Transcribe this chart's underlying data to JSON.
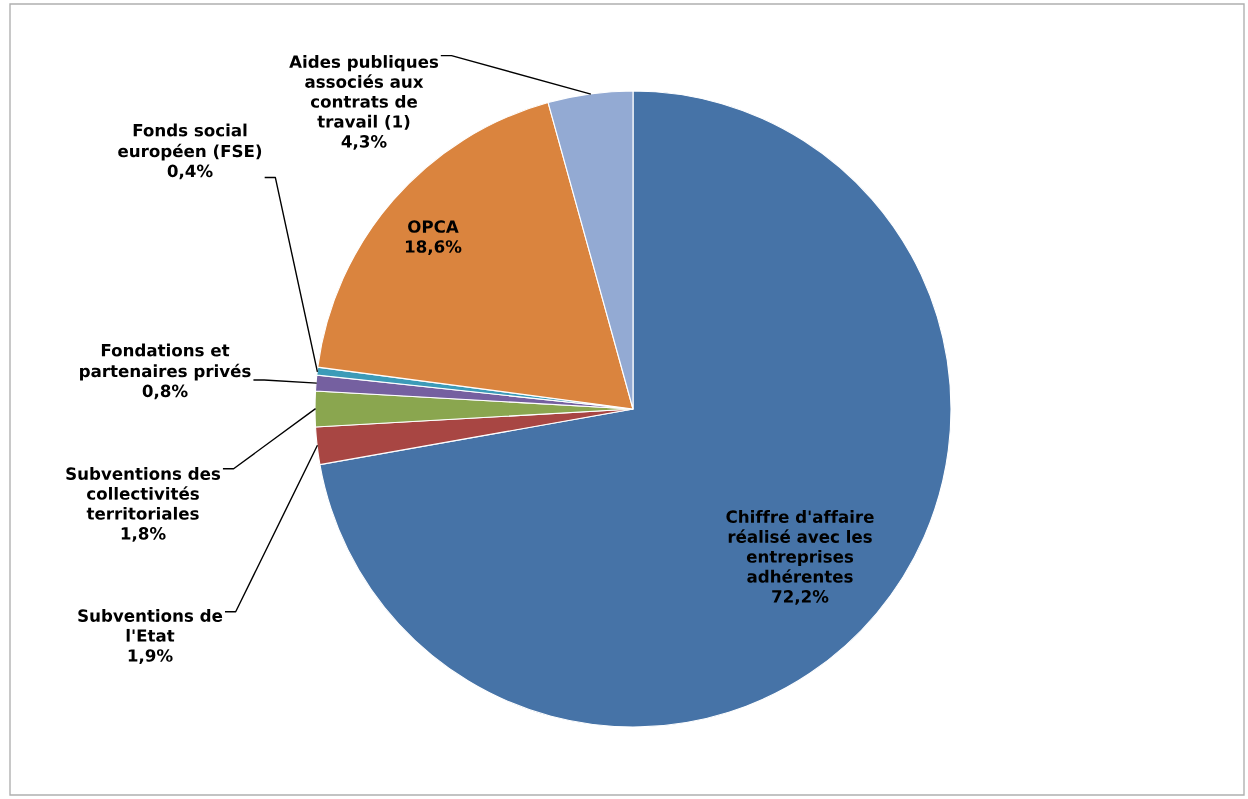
{
  "chart_data": {
    "type": "pie",
    "categories": [
      "Chiffre d'affaire\nréalisé avec les\nentreprises\nadhérentes",
      "Subventions de\nl'Etat",
      "Subventions des\ncollectivités\nterritoriales",
      "Fondations et\npartenaires privés",
      "Fonds social\neuropéen (FSE)",
      "OPCA",
      "Aides publiques\nassociés aux\ncontrats de\ntravail (1)"
    ],
    "values": [
      72.2,
      1.9,
      1.8,
      0.8,
      0.4,
      18.6,
      4.3
    ],
    "colors": [
      "#4673a7",
      "#a84643",
      "#8aa64f",
      "#7560a0",
      "#3c9bb8",
      "#da843e",
      "#93aad3"
    ],
    "value_labels": [
      "72,2%",
      "1,9%",
      "1,8%",
      "0,8%",
      "0,4%",
      "18,6%",
      "4,3%"
    ],
    "legend": false
  }
}
